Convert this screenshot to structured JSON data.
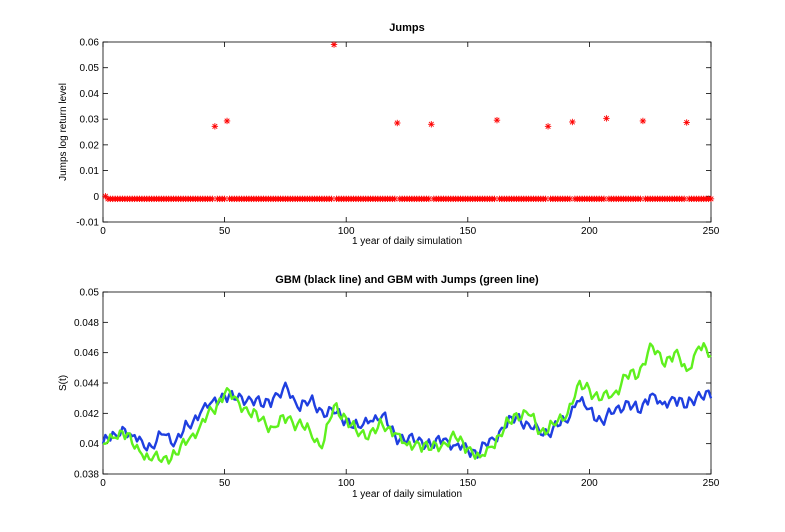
{
  "chart_data": [
    {
      "type": "scatter",
      "title": "Jumps",
      "xlabel": "1 year of daily simulation",
      "ylabel": "Jumps log return level",
      "xlim": [
        0,
        250
      ],
      "ylim": [
        -0.01,
        0.06
      ],
      "xticks": [
        "0",
        "50",
        "100",
        "150",
        "200",
        "250"
      ],
      "yticks": [
        "-0.01",
        "0",
        "0.01",
        "0.02",
        "0.03",
        "0.04",
        "0.05",
        "0.06"
      ],
      "grid": false,
      "marker": "asterisk",
      "color": "#ff0000",
      "baseline_value": -0.001,
      "baseline_days": [
        1,
        250
      ],
      "jumps": [
        {
          "x": 46,
          "y": 0.0272
        },
        {
          "x": 51,
          "y": 0.0293
        },
        {
          "x": 95,
          "y": 0.059
        },
        {
          "x": 121,
          "y": 0.0285
        },
        {
          "x": 135,
          "y": 0.028
        },
        {
          "x": 162,
          "y": 0.0296
        },
        {
          "x": 183,
          "y": 0.0272
        },
        {
          "x": 193,
          "y": 0.0289
        },
        {
          "x": 207,
          "y": 0.0303
        },
        {
          "x": 222,
          "y": 0.0293
        },
        {
          "x": 240,
          "y": 0.0287
        }
      ],
      "start_point": {
        "x": 1,
        "y": 0.0
      }
    },
    {
      "type": "line",
      "title": "GBM (black line) and GBM with Jumps (green line)",
      "xlabel": "1 year of daily simulation",
      "ylabel": "S(t)",
      "xlim": [
        0,
        250
      ],
      "ylim": [
        0.038,
        0.05
      ],
      "xticks": [
        "0",
        "50",
        "100",
        "150",
        "200",
        "250"
      ],
      "yticks": [
        "0.038",
        "0.04",
        "0.042",
        "0.044",
        "0.046",
        "0.048",
        "0.05"
      ],
      "grid": false,
      "series": [
        {
          "color": "#1f3fe0",
          "x": [
            0,
            5,
            8,
            12,
            16,
            20,
            25,
            30,
            35,
            40,
            45,
            50,
            55,
            60,
            65,
            70,
            76,
            80,
            85,
            90,
            95,
            100,
            105,
            110,
            115,
            120,
            125,
            130,
            135,
            140,
            145,
            150,
            155,
            160,
            165,
            170,
            175,
            180,
            185,
            190,
            195,
            200,
            205,
            210,
            215,
            220,
            225,
            230,
            235,
            240,
            245,
            250
          ],
          "values": [
            0.04,
            0.0406,
            0.0411,
            0.0405,
            0.0402,
            0.0398,
            0.0406,
            0.0402,
            0.0412,
            0.042,
            0.0428,
            0.0432,
            0.0429,
            0.0431,
            0.0425,
            0.043,
            0.0436,
            0.0424,
            0.0428,
            0.0422,
            0.042,
            0.0416,
            0.0411,
            0.0415,
            0.0419,
            0.0406,
            0.0401,
            0.0404,
            0.0398,
            0.0403,
            0.0399,
            0.0396,
            0.0394,
            0.0404,
            0.041,
            0.0418,
            0.0413,
            0.0406,
            0.041,
            0.0415,
            0.0428,
            0.0423,
            0.0415,
            0.042,
            0.0428,
            0.0421,
            0.0432,
            0.0426,
            0.043,
            0.0424,
            0.0434,
            0.043
          ]
        },
        {
          "color": "#5ff01e",
          "x": [
            0,
            5,
            8,
            12,
            16,
            20,
            25,
            30,
            35,
            40,
            45,
            50,
            55,
            60,
            65,
            70,
            76,
            80,
            85,
            90,
            95,
            100,
            105,
            110,
            115,
            120,
            125,
            130,
            135,
            140,
            145,
            150,
            155,
            160,
            165,
            170,
            175,
            180,
            185,
            190,
            195,
            200,
            205,
            210,
            215,
            220,
            225,
            230,
            235,
            240,
            245,
            250
          ],
          "values": [
            0.04,
            0.0404,
            0.0408,
            0.04,
            0.0393,
            0.0389,
            0.0391,
            0.0393,
            0.0402,
            0.0412,
            0.0422,
            0.0433,
            0.043,
            0.042,
            0.0416,
            0.0411,
            0.0417,
            0.0413,
            0.0409,
            0.0397,
            0.0425,
            0.0417,
            0.0405,
            0.0408,
            0.0412,
            0.0407,
            0.0399,
            0.04,
            0.0396,
            0.0401,
            0.0404,
            0.0397,
            0.0391,
            0.0398,
            0.041,
            0.042,
            0.0419,
            0.0408,
            0.0413,
            0.0416,
            0.0438,
            0.0436,
            0.0429,
            0.0433,
            0.0445,
            0.0444,
            0.0466,
            0.0453,
            0.046,
            0.0448,
            0.0464,
            0.0458
          ]
        }
      ]
    }
  ]
}
